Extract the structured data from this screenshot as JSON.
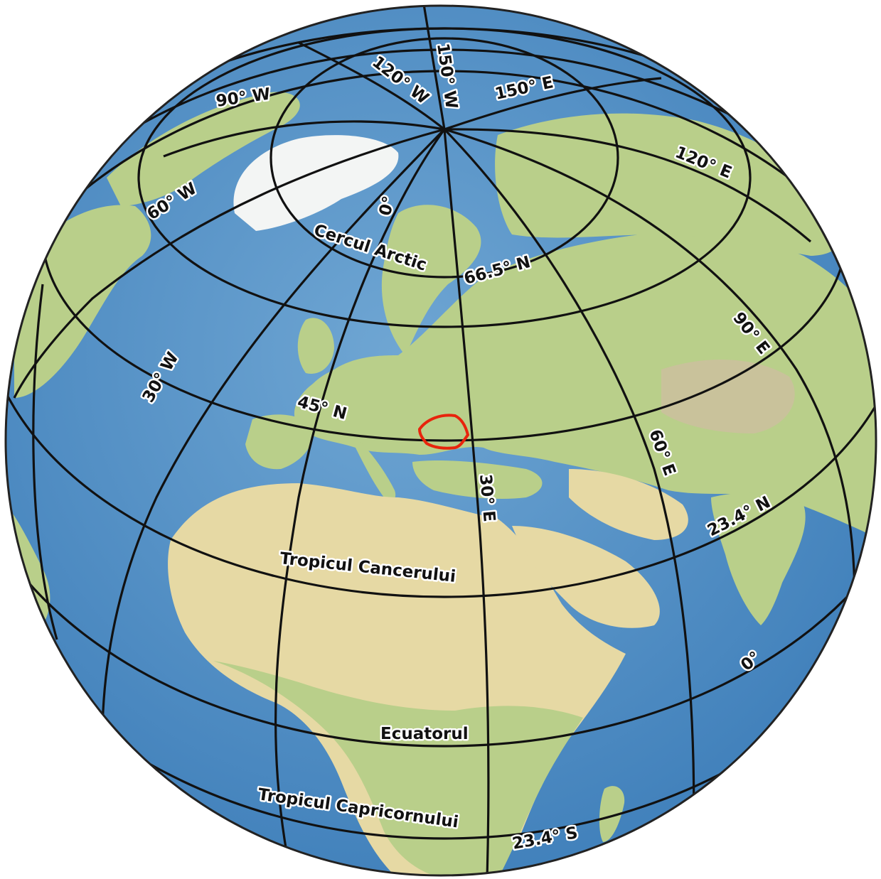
{
  "map": {
    "colors": {
      "ocean": "#3f7fba",
      "ocean_light": "#6fa6d3",
      "land": "#b9cf8a",
      "desert": "#e6d9a4",
      "highland": "#c9c29b",
      "ice": "#f3f5f4",
      "grid": "#111111",
      "highlight": "#e8240c"
    },
    "highlighted_country": "Romania outline",
    "labels": {
      "parallels": {
        "arctic_circle": "Cercul Arctic",
        "arctic_value": "66.5° N",
        "lat45": "45° N",
        "tropic_cancer": "Tropicul Cancerului",
        "tropic_cancer_value": "23.4° N",
        "equator": "Ecuatorul",
        "equator_value": "0°",
        "tropic_capricorn": "Tropicul Capricornului",
        "tropic_capricorn_value": "23.4° S"
      },
      "meridians": {
        "w150": "150° W",
        "w120": "120° W",
        "w90": "90° W",
        "w60": "60° W",
        "w30": "30° W",
        "zero": "0°",
        "e30": "30° E",
        "e60": "60° E",
        "e90": "90° E",
        "e120": "120° E",
        "e150": "150° E"
      }
    }
  }
}
